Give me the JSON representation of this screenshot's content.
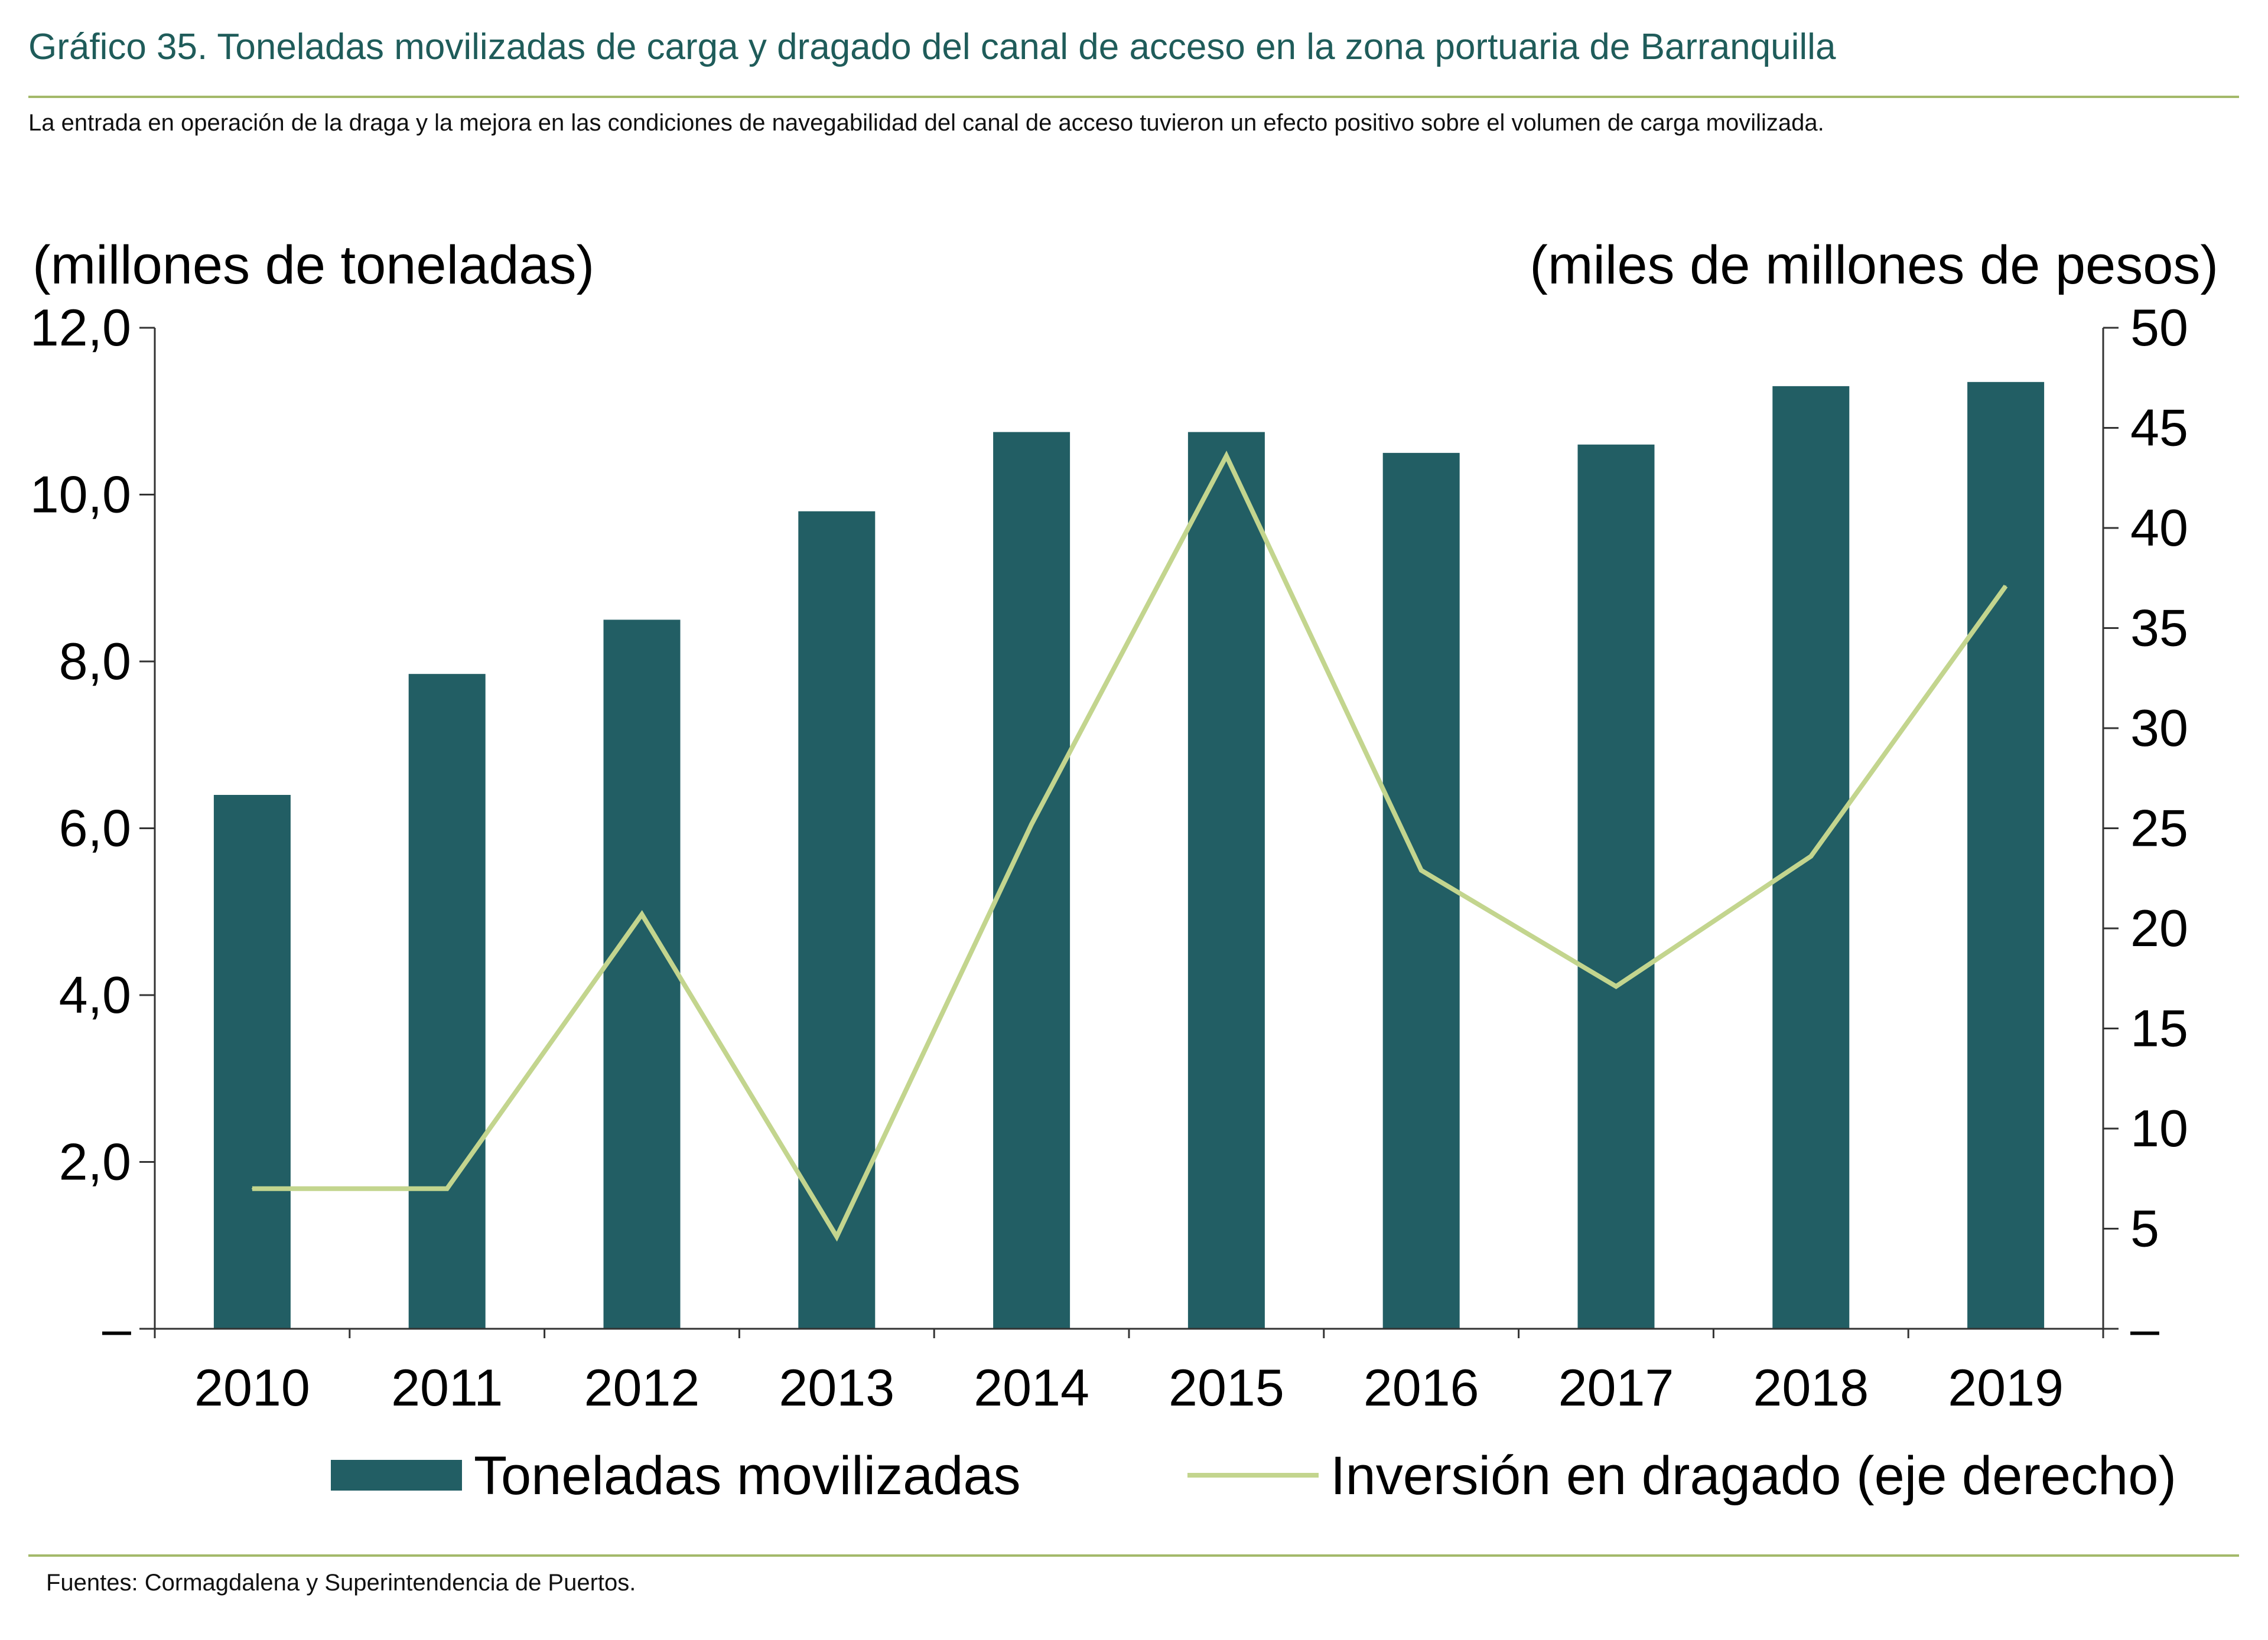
{
  "header": {
    "title": "Gráfico 35. Toneladas movilizadas de carga y dragado del canal de acceso en la zona portuaria de Barranquilla",
    "subtitle": "La entrada en operación de la draga y la mejora en las condiciones de navegabilidad del canal de acceso tuvieron un efecto positivo sobre el volumen de carga movilizada."
  },
  "footer": {
    "source": "Fuentes: Cormagdalena y Superintendencia de Puertos."
  },
  "colors": {
    "bar": "#225e64",
    "line": "#c3d58e",
    "title": "#1f5c5a",
    "rule": "#a3b96a"
  },
  "chart_data": {
    "type": "bar",
    "categories": [
      "2010",
      "2011",
      "2012",
      "2013",
      "2014",
      "2015",
      "2016",
      "2017",
      "2018",
      "2019"
    ],
    "left_axis": {
      "label": "(millones de toneladas)",
      "ylim": [
        0,
        12
      ],
      "ticks": [
        "–",
        "2,0",
        "4,0",
        "6,0",
        "8,0",
        "10,0",
        "12,0"
      ]
    },
    "right_axis": {
      "label": "(miles de millones de pesos)",
      "ylim": [
        0,
        50
      ],
      "ticks": [
        "–",
        "5",
        "10",
        "15",
        "20",
        "25",
        "30",
        "35",
        "40",
        "45",
        "50"
      ]
    },
    "series": [
      {
        "name": "Toneladas movilizadas",
        "type": "bar",
        "axis": "left",
        "values": [
          6.4,
          7.85,
          8.5,
          9.8,
          10.75,
          10.75,
          10.5,
          10.6,
          11.3,
          11.35
        ]
      },
      {
        "name": "Inversión en dragado (eje derecho)",
        "type": "line",
        "axis": "right",
        "values": [
          7.0,
          7.0,
          20.7,
          4.6,
          25.2,
          43.6,
          22.9,
          17.1,
          23.6,
          37.1
        ]
      }
    ],
    "grid": false,
    "legend_position": "bottom"
  }
}
